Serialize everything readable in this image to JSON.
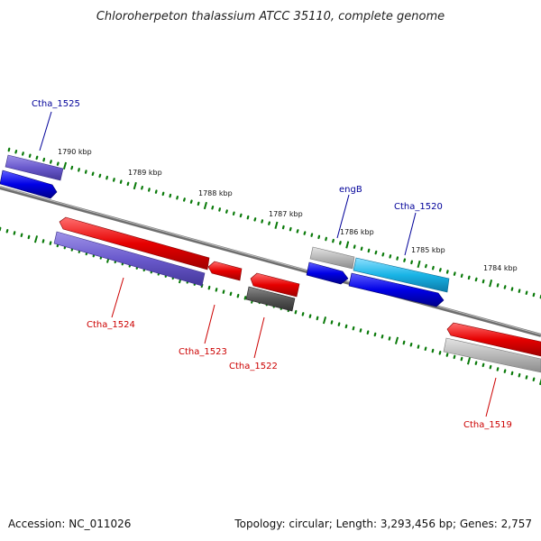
{
  "title": "Chloroherpeton thalassium ATCC 35110, complete genome",
  "footer": {
    "accession": "Accession: NC_011026",
    "topology": "Topology: circular; Length: 3,293,456 bp; Genes: 2,757"
  },
  "colors": {
    "backbone": "#888888",
    "tick": "#0a7a0a",
    "red": "#e60000",
    "blue": "#0000e6",
    "lavender": "#6a5acd",
    "cyan": "#19b4e6",
    "lightgray": "#b8b8b8",
    "darkgray": "#555555",
    "label_blue": "#000099",
    "label_red": "#cc0000"
  },
  "scale_labels": [
    "1790 kbp",
    "1789 kbp",
    "1788 kbp",
    "1787 kbp",
    "1786 kbp",
    "1785 kbp",
    "1784 kbp"
  ],
  "gene_labels": [
    {
      "text": "Ctha_1525",
      "strand": "outer"
    },
    {
      "text": "engB",
      "strand": "outer"
    },
    {
      "text": "Ctha_1520",
      "strand": "outer"
    },
    {
      "text": "Ctha_1524",
      "strand": "inner"
    },
    {
      "text": "Ctha_1523",
      "strand": "inner"
    },
    {
      "text": "Ctha_1522",
      "strand": "inner"
    },
    {
      "text": "Ctha_1519",
      "strand": "inner"
    }
  ]
}
